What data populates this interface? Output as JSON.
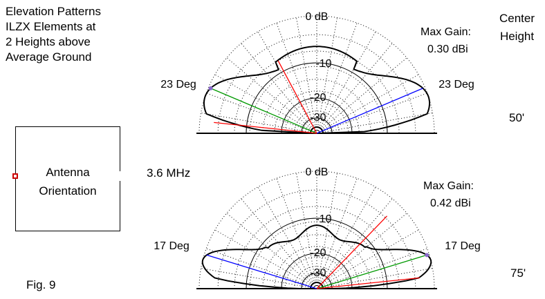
{
  "title_lines": [
    "Elevation Patterns",
    "ILZX Elements at",
    "2 Heights above",
    "Average Ground"
  ],
  "height_header": [
    "Center",
    "Height"
  ],
  "frequency": "3.6 MHz",
  "antenna_box": [
    "Antenna",
    "Orientation"
  ],
  "figure_label": "Fig. 9",
  "colors": {
    "pattern": "#000000",
    "grid": "#000000",
    "red": "#ff0000",
    "green": "#009900",
    "blue": "#0000ff",
    "marker": "#cc0000"
  },
  "plots": [
    {
      "height": "50'",
      "max_gain_label": "Max Gain:",
      "max_gain_value": "0.30 dBi",
      "ring_labels": [
        "0 dB",
        "-10",
        "-20",
        "-30"
      ],
      "angle_left": "23 Deg",
      "angle_right": "23 Deg",
      "takeoff_angle_deg": 23
    },
    {
      "height": "75'",
      "max_gain_label": "Max Gain:",
      "max_gain_value": "0.42 dBi",
      "ring_labels": [
        "0 dB",
        "-10",
        "-20",
        "-30"
      ],
      "angle_left": "17 Deg",
      "angle_right": "17 Deg",
      "takeoff_angle_deg": 17
    }
  ]
}
